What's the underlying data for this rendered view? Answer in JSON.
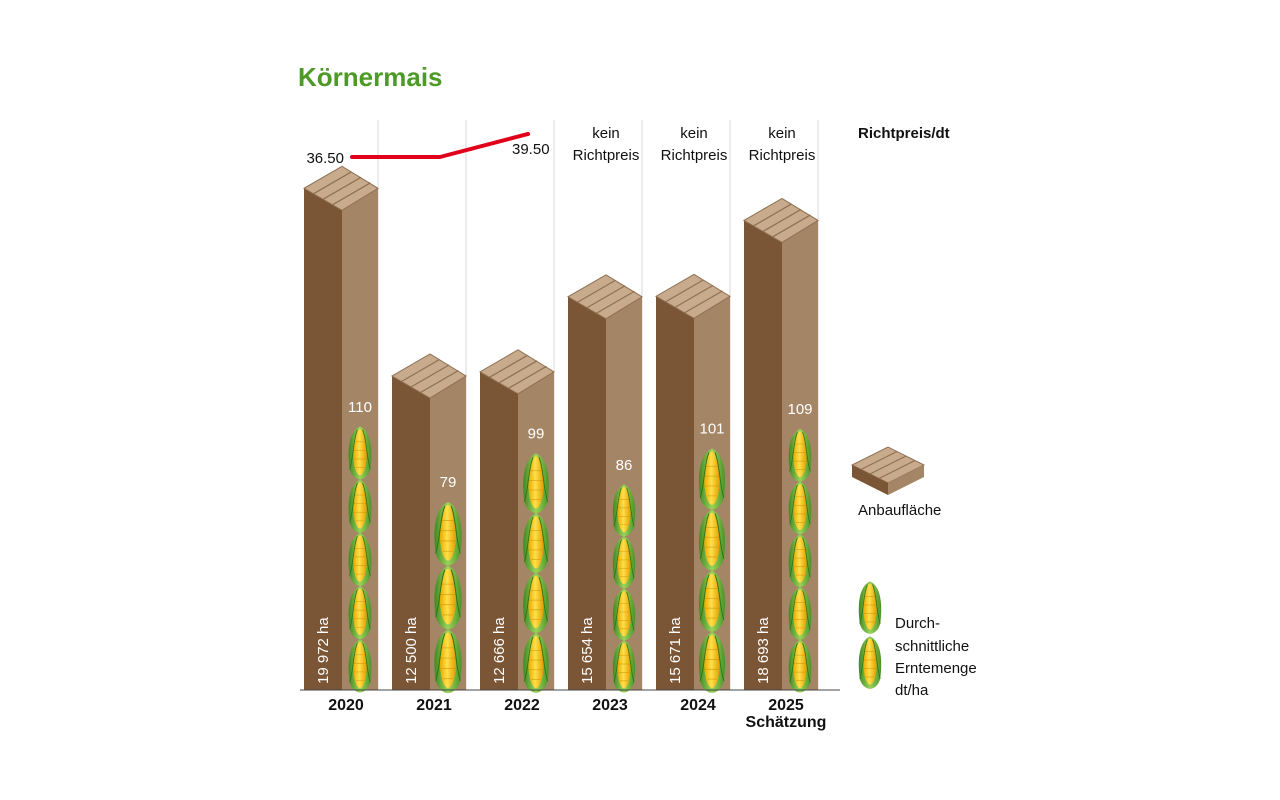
{
  "chart_data": {
    "type": "bar",
    "title": "Körnermais",
    "categories": [
      "2020",
      "2021",
      "2022",
      "2023",
      "2024",
      "2025"
    ],
    "category_notes": [
      "",
      "",
      "",
      "",
      "",
      "Schätzung"
    ],
    "series": [
      {
        "name": "Anbaufläche",
        "unit": "ha",
        "values": [
          19972,
          12500,
          12666,
          15654,
          15671,
          18693
        ],
        "labels": [
          "19 972 ha",
          "12 500 ha",
          "12 666 ha",
          "15 654 ha",
          "15 671 ha",
          "18 693 ha"
        ]
      },
      {
        "name": "Durchschnittliche Erntemenge dt/ha",
        "values": [
          110,
          79,
          99,
          86,
          101,
          109
        ],
        "labels": [
          "110",
          "79",
          "99",
          "86",
          "101",
          "109"
        ]
      },
      {
        "name": "Richtpreis/dt",
        "values": [
          36.5,
          36.5,
          39.5,
          null,
          null,
          null
        ],
        "labels": [
          "36.50",
          "",
          "39.50",
          "",
          "",
          ""
        ],
        "no_price_label": [
          "kein",
          "Richtpreis"
        ]
      }
    ]
  },
  "legend": {
    "price": "Richtpreis/dt",
    "area": "Anbaufläche",
    "yield_lines": [
      "Durch-",
      "schnittliche",
      "Erntemenge",
      "dt/ha"
    ]
  },
  "colors": {
    "title": "#4d9a26",
    "bar_front": "#7a5536",
    "bar_side": "#a48565",
    "bar_top": "#c7ab8c",
    "price_line": "#e0001a",
    "corn_kernel": "#f5c400",
    "corn_husk": "#6cb33a"
  }
}
